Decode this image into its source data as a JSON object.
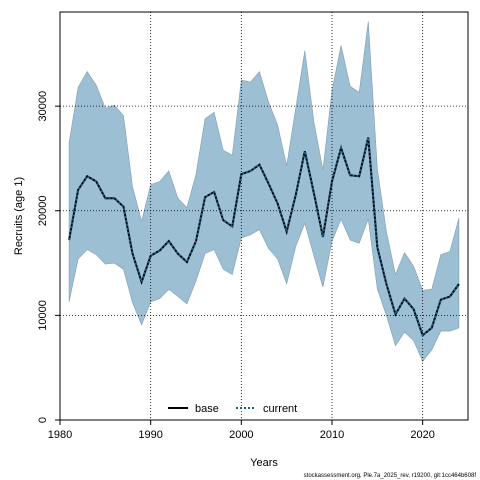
{
  "chart_data": {
    "type": "line",
    "xlabel": "Years",
    "ylabel": "Recruits (age 1)",
    "xlim": [
      1980,
      2025
    ],
    "ylim": [
      0,
      39000
    ],
    "x_ticks": [
      1980,
      1990,
      2000,
      2010,
      2020
    ],
    "x_tick_labels": [
      "1980",
      "1990",
      "2000",
      "2010",
      "2020"
    ],
    "y_ticks": [
      0,
      10000,
      20000,
      30000
    ],
    "y_tick_labels": [
      "0",
      "10000",
      "20000",
      "30000"
    ],
    "grid": true,
    "legend": {
      "placement": "bottom-center",
      "entries": [
        {
          "name": "base",
          "color": "#000000",
          "style": "solid"
        },
        {
          "name": "current",
          "color": "#1a5f8a",
          "style": "dotted"
        }
      ]
    },
    "band_color": "#9dbfd3",
    "x": [
      1981,
      1982,
      1983,
      1984,
      1985,
      1986,
      1987,
      1988,
      1989,
      1990,
      1991,
      1992,
      1993,
      1994,
      1995,
      1996,
      1997,
      1998,
      1999,
      2000,
      2001,
      2002,
      2003,
      2004,
      2005,
      2006,
      2007,
      2008,
      2009,
      2010,
      2011,
      2012,
      2013,
      2014,
      2015,
      2016,
      2017,
      2018,
      2019,
      2020,
      2021,
      2022,
      2023,
      2024
    ],
    "series": [
      {
        "name": "base",
        "values": [
          17200,
          22000,
          23300,
          22800,
          21200,
          21200,
          20400,
          15900,
          13200,
          15700,
          16200,
          17100,
          15900,
          15100,
          17100,
          21300,
          21800,
          19100,
          18500,
          23500,
          23800,
          24400,
          22600,
          20700,
          18000,
          21500,
          25700,
          21700,
          17500,
          22800,
          26000,
          23400,
          23300,
          27000,
          16500,
          13000,
          10100,
          11600,
          10600,
          8100,
          8800,
          11500,
          11800,
          13000
        ]
      },
      {
        "name": "current",
        "values": [
          17200,
          22000,
          23300,
          22800,
          21200,
          21200,
          20400,
          15900,
          13200,
          15700,
          16200,
          17100,
          15900,
          15100,
          17100,
          21300,
          21800,
          19100,
          18500,
          23500,
          23800,
          24400,
          22600,
          20700,
          18000,
          21500,
          25700,
          21700,
          17500,
          22800,
          26000,
          23400,
          23300,
          27000,
          16500,
          13000,
          10100,
          11600,
          10600,
          8100,
          8800,
          11500,
          11800,
          13000
        ]
      }
    ],
    "band": {
      "upper": [
        26500,
        31800,
        33300,
        32000,
        29800,
        30100,
        29100,
        22300,
        19000,
        22500,
        22800,
        23800,
        21200,
        20300,
        23500,
        28800,
        29400,
        25800,
        25300,
        32500,
        32300,
        33300,
        30400,
        28200,
        24300,
        29800,
        35300,
        28500,
        23900,
        31500,
        35800,
        31900,
        31300,
        38100,
        24000,
        18000,
        13900,
        16000,
        14700,
        12400,
        12500,
        15800,
        16100,
        19300
      ],
      "lower": [
        11300,
        15400,
        16300,
        15800,
        14900,
        15000,
        14400,
        11200,
        9100,
        11300,
        11600,
        12500,
        11800,
        11100,
        13300,
        15900,
        16300,
        14400,
        13900,
        17400,
        17700,
        18200,
        16400,
        15400,
        13000,
        16600,
        18800,
        15700,
        12700,
        17100,
        19200,
        17200,
        16900,
        19200,
        12500,
        10000,
        7100,
        8400,
        7600,
        5600,
        6700,
        8500,
        8500,
        8800
      ]
    }
  },
  "footer": "stockassessment.org, Ple.7a_2025_rev, r19200, git:1cc464b608f"
}
